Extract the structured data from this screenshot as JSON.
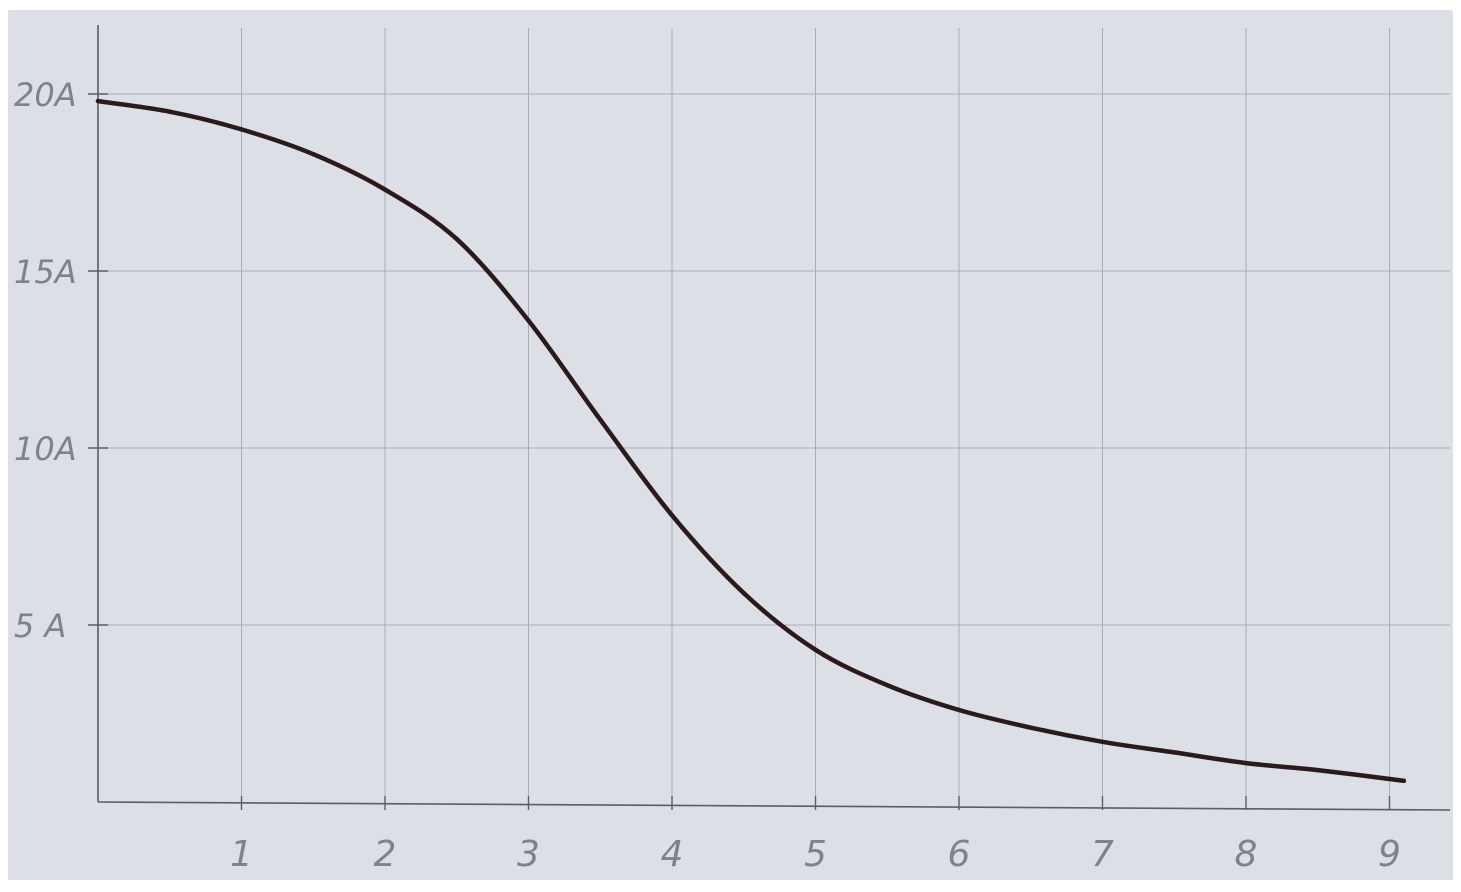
{
  "chart_data": {
    "type": "line",
    "title": "",
    "xlabel": "",
    "ylabel": "",
    "x_ticks": [
      "1",
      "2",
      "3",
      "4",
      "5",
      "6",
      "7",
      "8",
      "9"
    ],
    "y_ticks": [
      {
        "value": 5,
        "label": "5 A"
      },
      {
        "value": 10,
        "label": "10A"
      },
      {
        "value": 15,
        "label": "15A"
      },
      {
        "value": 20,
        "label": "20A"
      }
    ],
    "xlim": [
      0,
      9.1
    ],
    "ylim": [
      0,
      20
    ],
    "grid": true,
    "legend": "none",
    "series": [
      {
        "values_x": [
          0,
          0.5,
          1,
          1.5,
          2,
          2.5,
          3,
          3.5,
          4,
          4.5,
          5,
          5.5,
          6,
          6.5,
          7,
          7.5,
          8,
          8.5,
          9.1
        ],
        "values_y": [
          19.8,
          19.5,
          19.0,
          18.3,
          17.3,
          15.9,
          13.6,
          10.8,
          8.1,
          5.9,
          4.3,
          3.3,
          2.6,
          2.1,
          1.7,
          1.4,
          1.1,
          0.9,
          0.6
        ]
      }
    ]
  },
  "colors": {
    "paper": "#dcdfe6",
    "grid": "#a8acb6",
    "axis": "#5b5e66",
    "labels": "#7e828c",
    "curve": "#2a1a1a"
  }
}
